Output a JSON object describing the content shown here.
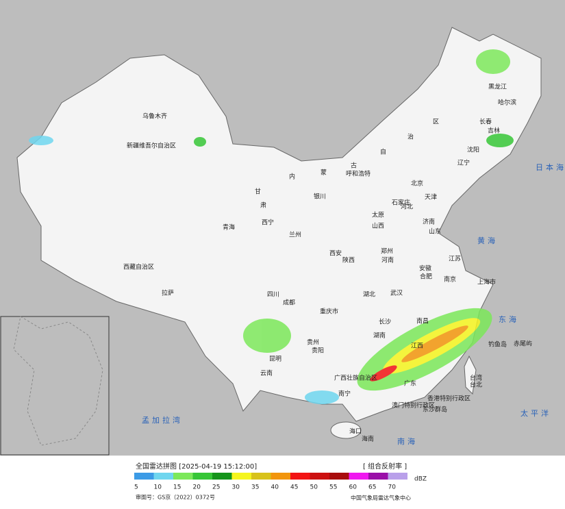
{
  "legend": {
    "title": "全国雷达拼图 [2025-04-19 15:12:00]",
    "product": "[ 组合反射率 ]",
    "unit": "dBZ",
    "levels": [
      {
        "label": 5,
        "color": "#3c9be6"
      },
      {
        "label": 10,
        "color": "#6fd6ef"
      },
      {
        "label": 15,
        "color": "#7ce85a"
      },
      {
        "label": 20,
        "color": "#36c636"
      },
      {
        "label": 25,
        "color": "#15941b"
      },
      {
        "label": 30,
        "color": "#f5f51e"
      },
      {
        "label": 35,
        "color": "#d8c21a"
      },
      {
        "label": 40,
        "color": "#f2950c"
      },
      {
        "label": 45,
        "color": "#f21414"
      },
      {
        "label": 50,
        "color": "#cc1010"
      },
      {
        "label": 55,
        "color": "#a80c0c"
      },
      {
        "label": 60,
        "color": "#f018f0"
      },
      {
        "label": 65,
        "color": "#9a0fa8"
      },
      {
        "label": 70,
        "color": "#b9a0ea"
      }
    ]
  },
  "map_labels": [
    "乌鲁木齐",
    "新疆维吾尔自治区",
    "西藏自治区",
    "拉萨",
    "青海",
    "西宁",
    "甘",
    "肃",
    "内",
    "蒙",
    "古",
    "自",
    "治",
    "区",
    "呼和浩特",
    "黑龙江",
    "哈尔滨",
    "长春",
    "吉林",
    "沈阳",
    "辽宁",
    "北京",
    "天津",
    "石家庄",
    "河北",
    "太原",
    "山西",
    "济南",
    "山东",
    "郑州",
    "河南",
    "西安",
    "陕西",
    "兰州",
    "银川",
    "成都",
    "四川",
    "重庆市",
    "武汉",
    "湖北",
    "合肥",
    "安徽",
    "南京",
    "江苏",
    "上海市",
    "长沙",
    "湖南",
    "南昌",
    "江西",
    "贵阳",
    "贵州",
    "昆明",
    "云南",
    "广西壮族自治区",
    "南宁",
    "广东",
    "香港特别行政区",
    "澳门特别行政区",
    "海口",
    "海南",
    "台北",
    "台湾",
    "钓鱼岛",
    "赤尾屿",
    "东沙群岛",
    "日本海",
    "黄海",
    "东海",
    "太平洋",
    "南海",
    "孟加拉湾"
  ],
  "footer": {
    "approval": "审图号：GS京（2022）0372号",
    "agency": "中国气象局雷达气象中心"
  }
}
